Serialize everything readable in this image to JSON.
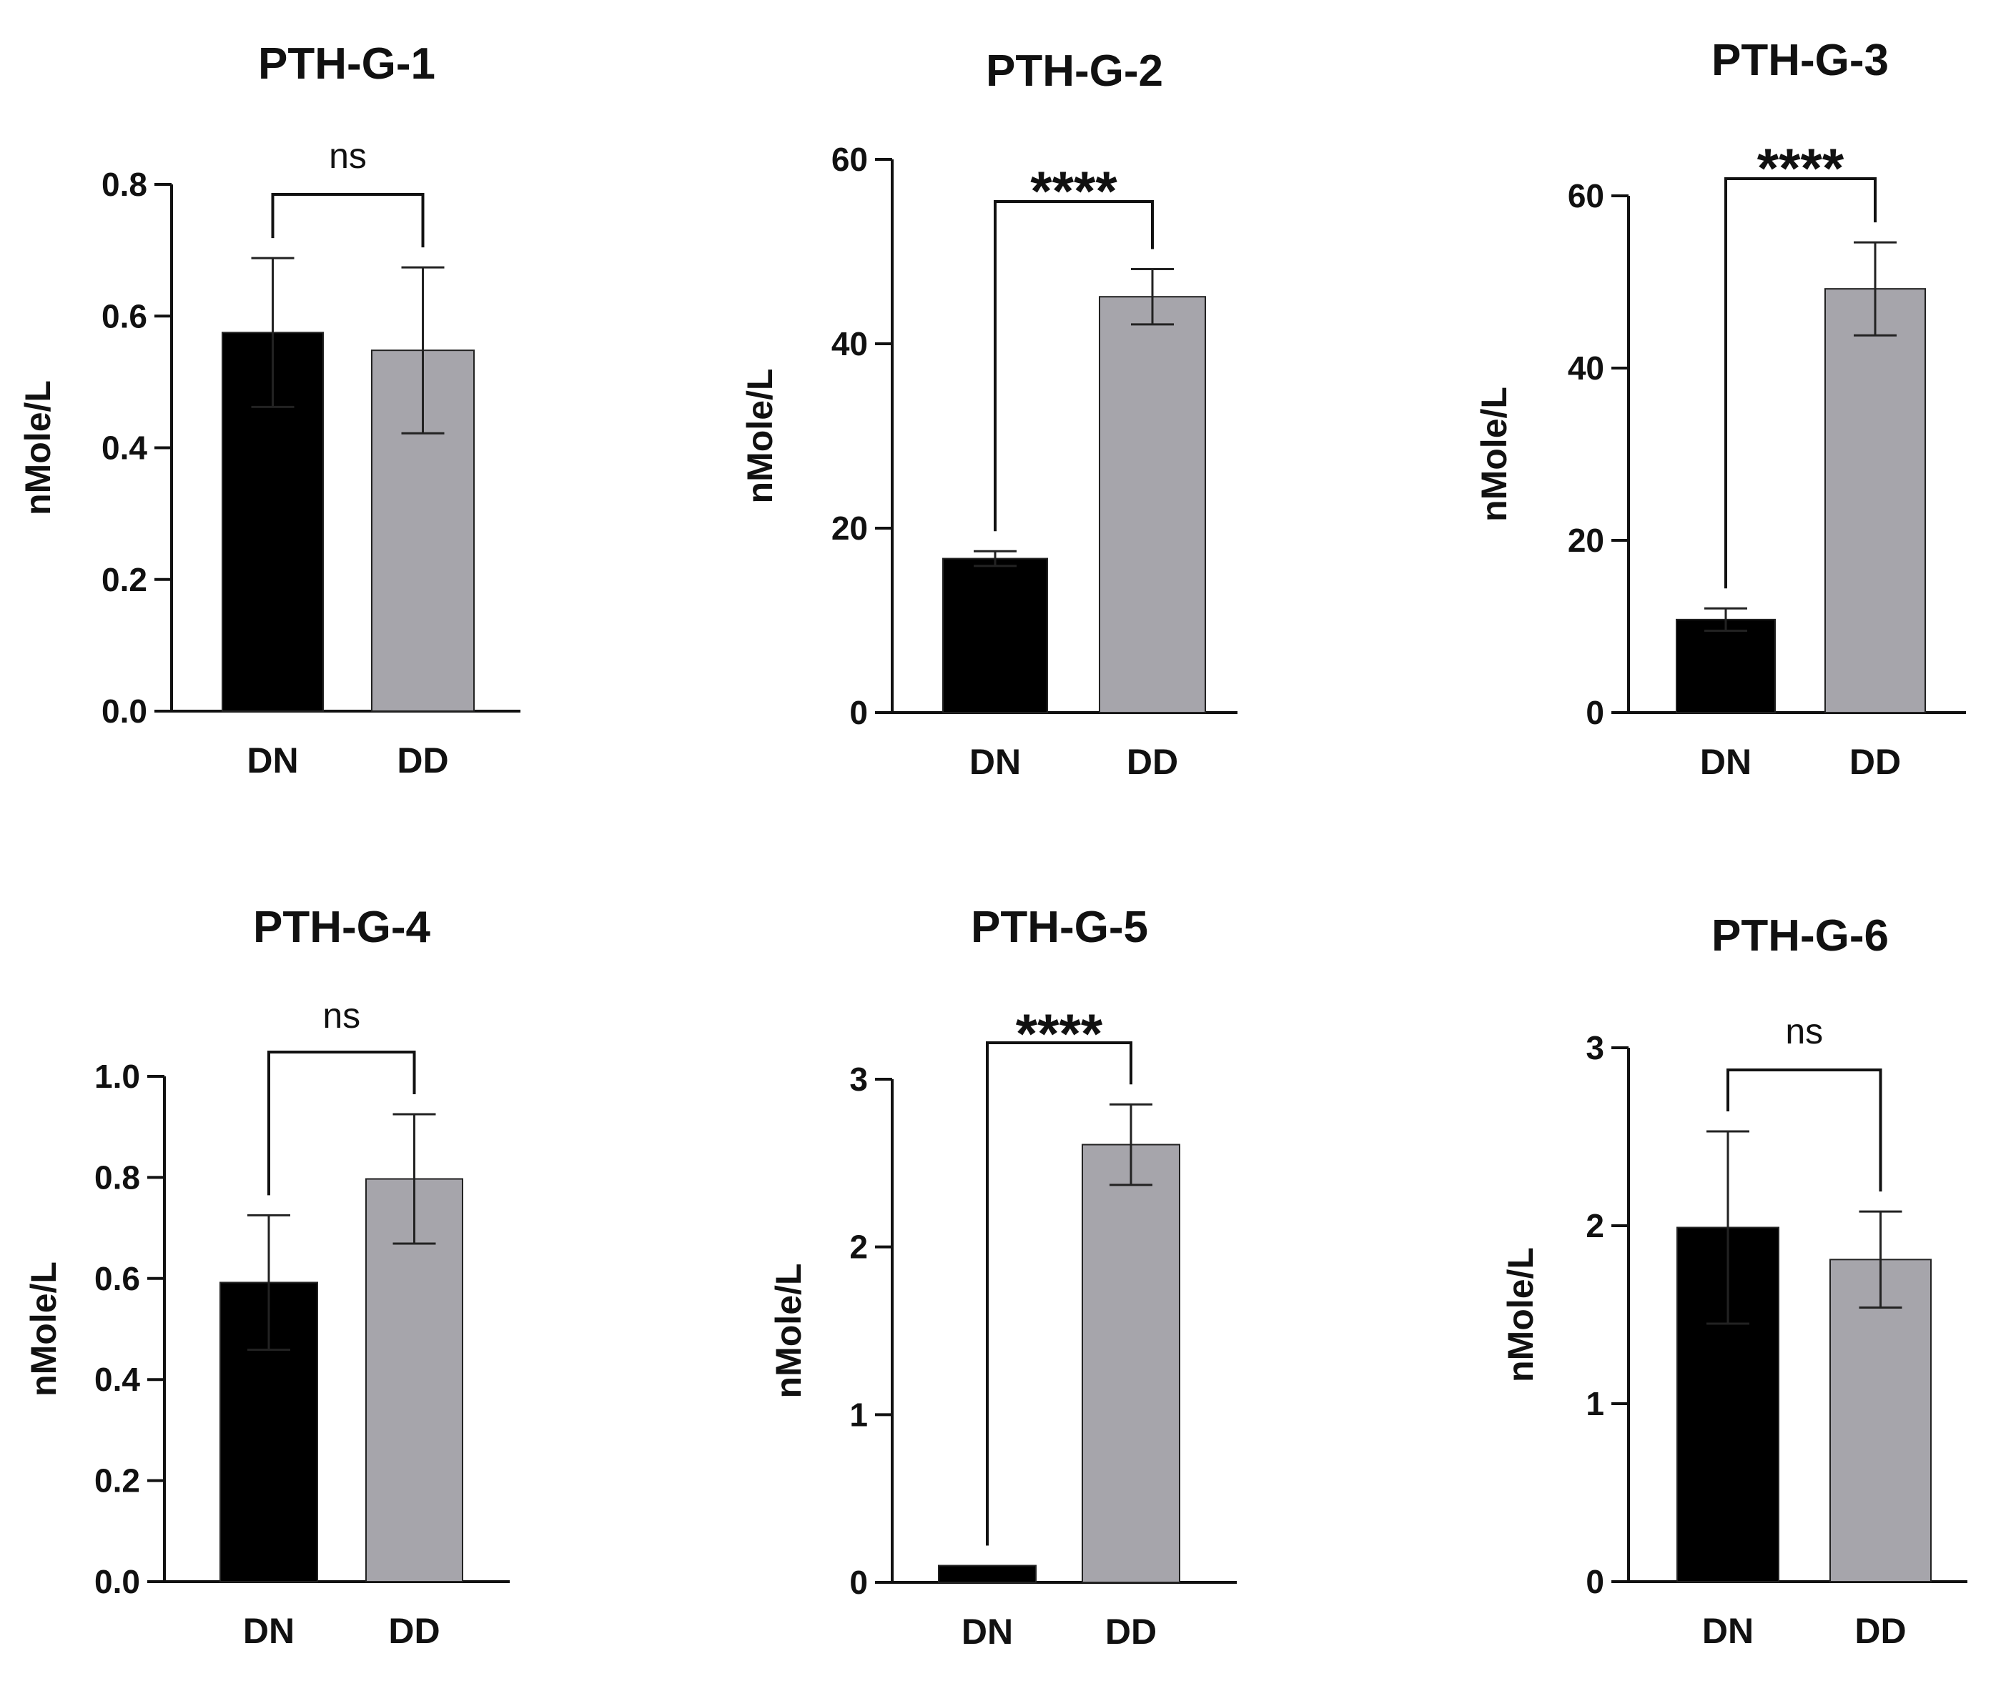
{
  "chart_data": [
    {
      "type": "bar",
      "title": "PTH-G-1",
      "categories": [
        "DN",
        "DD"
      ],
      "values": [
        0.575,
        0.548
      ],
      "errors": [
        0.113,
        0.126
      ],
      "colors": [
        "#000000",
        "#a6a5ab"
      ],
      "ylabel": "nMole/L",
      "ylim": [
        0,
        0.8
      ],
      "yticks": [
        "0.0",
        "0.2",
        "0.4",
        "0.6",
        "0.8"
      ],
      "significance": "ns"
    },
    {
      "type": "bar",
      "title": "PTH-G-2",
      "categories": [
        "DN",
        "DD"
      ],
      "values": [
        16.7,
        45.1
      ],
      "errors": [
        0.8,
        3.0
      ],
      "colors": [
        "#000000",
        "#a6a5ab"
      ],
      "ylabel": "nMole/L",
      "ylim": [
        0,
        60
      ],
      "yticks": [
        "0",
        "20",
        "40",
        "60"
      ],
      "significance": "****"
    },
    {
      "type": "bar",
      "title": "PTH-G-3",
      "categories": [
        "DN",
        "DD"
      ],
      "values": [
        10.8,
        49.2
      ],
      "errors": [
        1.3,
        5.4
      ],
      "colors": [
        "#000000",
        "#a6a5ab"
      ],
      "ylabel": "nMole/L",
      "ylim": [
        0,
        60
      ],
      "yticks": [
        "0",
        "20",
        "40",
        "60"
      ],
      "significance": "****"
    },
    {
      "type": "bar",
      "title": "PTH-G-4",
      "categories": [
        "DN",
        "DD"
      ],
      "values": [
        0.592,
        0.797
      ],
      "errors": [
        0.133,
        0.128
      ],
      "colors": [
        "#000000",
        "#a6a5ab"
      ],
      "ylabel": "nMole/L",
      "ylim": [
        0,
        1.0
      ],
      "yticks": [
        "0.0",
        "0.2",
        "0.4",
        "0.6",
        "0.8",
        "1.0"
      ],
      "significance": "ns"
    },
    {
      "type": "bar",
      "title": "PTH-G-5",
      "categories": [
        "DN",
        "DD"
      ],
      "values": [
        0.1,
        2.61
      ],
      "errors": [
        0.0,
        0.24
      ],
      "colors": [
        "#000000",
        "#a6a5ab"
      ],
      "ylabel": "nMole/L",
      "ylim": [
        0,
        3
      ],
      "yticks": [
        "0",
        "1",
        "2",
        "3"
      ],
      "significance": "****"
    },
    {
      "type": "bar",
      "title": "PTH-G-6",
      "categories": [
        "DN",
        "DD"
      ],
      "values": [
        1.99,
        1.81
      ],
      "errors": [
        0.54,
        0.27
      ],
      "colors": [
        "#000000",
        "#a6a5ab"
      ],
      "ylabel": "nMole/L",
      "ylim": [
        0,
        3
      ],
      "yticks": [
        "0",
        "1",
        "2",
        "3"
      ],
      "significance": "ns"
    }
  ]
}
